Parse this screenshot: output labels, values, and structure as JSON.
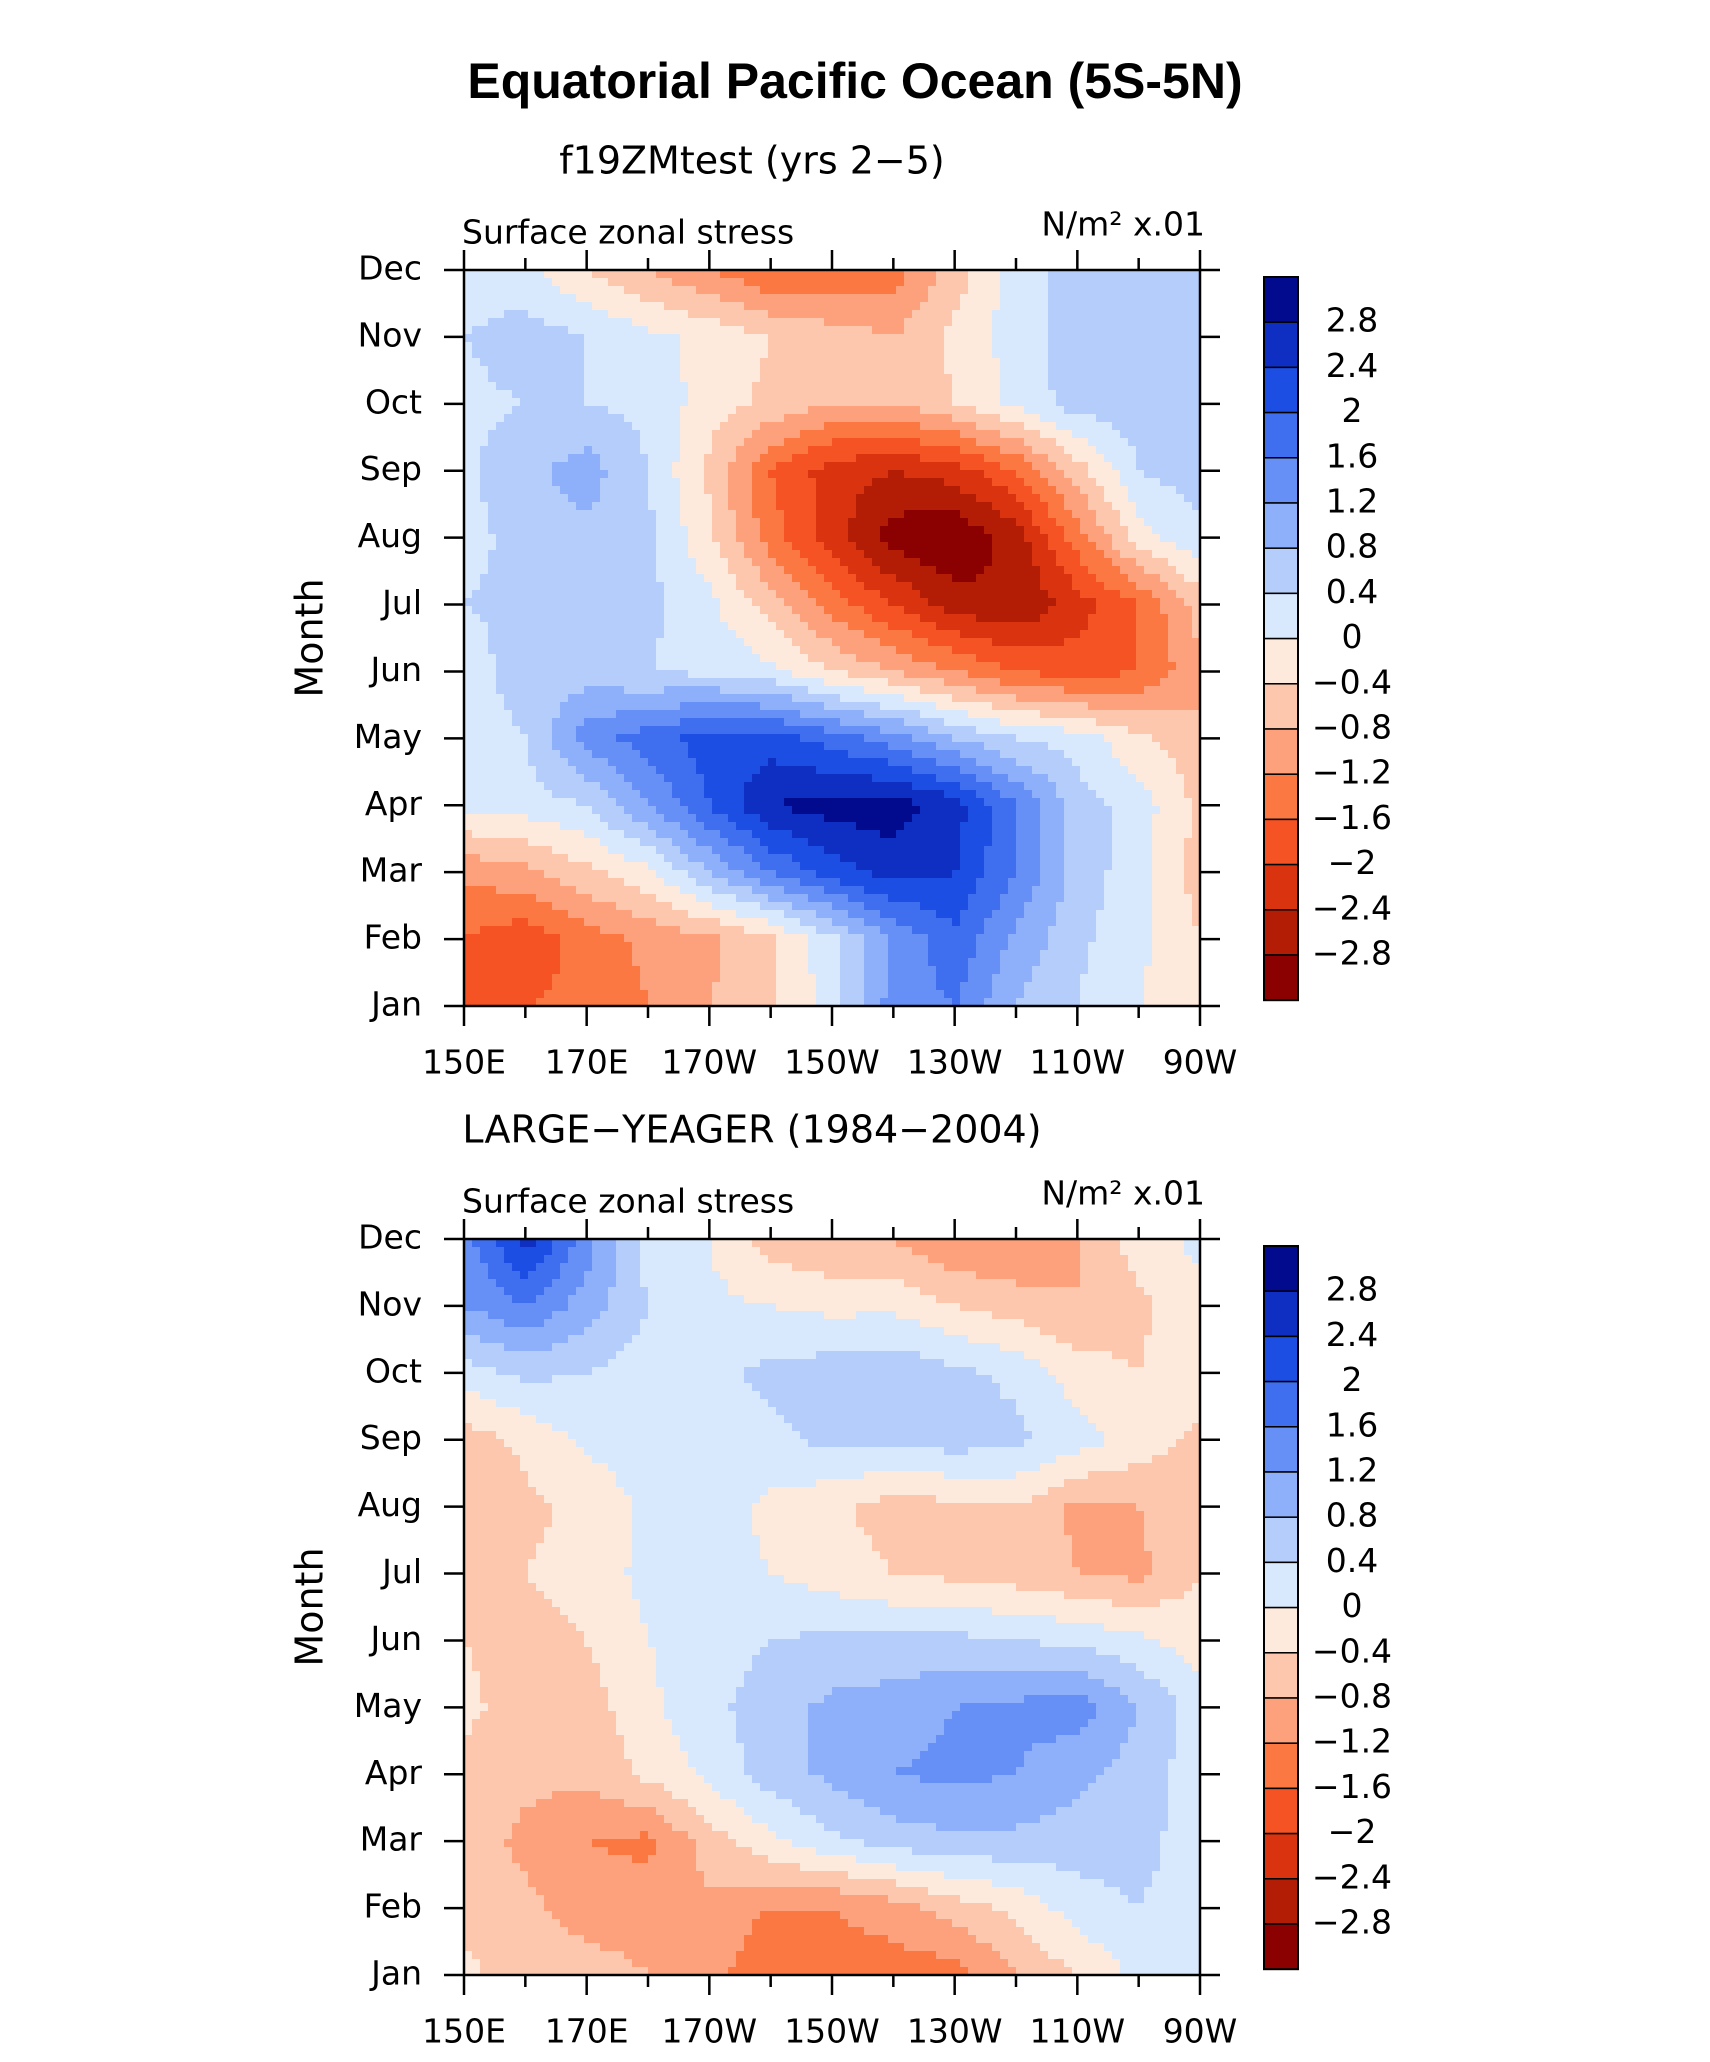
{
  "figure": {
    "title": "Equatorial Pacific Ocean (5S-5N)"
  },
  "colorbar": {
    "levels": [
      -3.2,
      -2.8,
      -2.4,
      -2.0,
      -1.6,
      -1.2,
      -0.8,
      -0.4,
      0,
      0.4,
      0.8,
      1.2,
      1.6,
      2.0,
      2.4,
      2.8,
      3.2
    ],
    "labels": [
      "2.8",
      "2.4",
      "2",
      "1.6",
      "1.2",
      "0.8",
      "0.4",
      "0",
      "−0.4",
      "−0.8",
      "−1.2",
      "−1.6",
      "−2",
      "−2.4",
      "−2.8"
    ],
    "colors": [
      "#8b0000",
      "#b31d06",
      "#d9330f",
      "#f55323",
      "#fc7842",
      "#fca17b",
      "#fdc7ad",
      "#feeadd",
      "#d9e9fd",
      "#b5cdfb",
      "#8eaffa",
      "#6690f5",
      "#3f6fef",
      "#1d4ee4",
      "#0e2fc2",
      "#020a8e"
    ]
  },
  "chart_data": [
    {
      "type": "heatmap",
      "panel_title": "f19ZMtest (yrs 2−5)",
      "left_label": "Surface zonal stress",
      "right_label": "N/m² x.01",
      "xlabel": "",
      "ylabel": "Month",
      "x_ticks": [
        "150E",
        "170E",
        "170W",
        "150W",
        "130W",
        "110W",
        "90W"
      ],
      "x_longitudes": [
        150,
        170,
        190,
        210,
        230,
        250,
        270
      ],
      "y_ticks": [
        "Jan",
        "Feb",
        "Mar",
        "Apr",
        "May",
        "Jun",
        "Jul",
        "Aug",
        "Sep",
        "Oct",
        "Nov",
        "Dec"
      ],
      "values": [
        [
          -1.6,
          -1.6,
          -1.5,
          -1.2,
          -0.8,
          -0.5,
          0.2,
          1.4,
          1.6,
          0.8,
          0.4,
          0.0,
          -0.2
        ],
        [
          -1.6,
          -1.9,
          -1.4,
          -1.1,
          -0.9,
          -0.5,
          0.3,
          1.2,
          1.9,
          1.1,
          0.5,
          0.1,
          -0.4
        ],
        [
          -1.1,
          -0.9,
          -0.5,
          -0.1,
          0.8,
          1.6,
          2.2,
          2.6,
          2.4,
          1.6,
          0.6,
          0.2,
          -0.6
        ],
        [
          0.1,
          0.2,
          0.4,
          1.2,
          2.0,
          2.8,
          3.0,
          3.0,
          2.6,
          1.6,
          0.6,
          0.2,
          -0.5
        ],
        [
          0.2,
          0.4,
          1.4,
          1.8,
          2.2,
          2.2,
          1.8,
          1.4,
          0.8,
          0.4,
          0.2,
          -0.3,
          -0.7
        ],
        [
          0.2,
          0.6,
          0.6,
          0.4,
          0.3,
          0.1,
          -0.4,
          -0.8,
          -1.2,
          -1.6,
          -1.8,
          -1.6,
          -0.9
        ],
        [
          0.4,
          0.5,
          0.6,
          0.5,
          0.1,
          -0.6,
          -1.4,
          -2.0,
          -2.6,
          -2.8,
          -2.2,
          -1.6,
          -0.6
        ],
        [
          0.3,
          0.5,
          0.7,
          0.5,
          -0.3,
          -1.4,
          -2.2,
          -3.0,
          -3.2,
          -2.6,
          -1.4,
          -0.2,
          0.3
        ],
        [
          0.3,
          0.7,
          1.0,
          0.4,
          -0.5,
          -1.6,
          -2.2,
          -2.4,
          -2.2,
          -1.6,
          -0.6,
          0.4,
          0.6
        ],
        [
          0.3,
          0.4,
          0.4,
          0.3,
          -0.2,
          -0.5,
          -0.8,
          -0.8,
          -0.4,
          0.1,
          0.6,
          0.6,
          0.4
        ],
        [
          0.4,
          0.6,
          0.4,
          0.1,
          -0.1,
          -0.4,
          -0.6,
          -0.8,
          -0.3,
          0.2,
          0.6,
          0.8,
          0.6
        ],
        [
          0.2,
          0.1,
          -0.4,
          -0.8,
          -1.2,
          -1.6,
          -1.6,
          -1.4,
          -0.6,
          0.2,
          0.6,
          0.8,
          0.4
        ]
      ]
    },
    {
      "type": "heatmap",
      "panel_title": "LARGE−YEAGER (1984−2004)",
      "left_label": "Surface zonal stress",
      "right_label": "N/m² x.01",
      "xlabel": "",
      "ylabel": "Month",
      "x_ticks": [
        "150E",
        "170E",
        "170W",
        "150W",
        "130W",
        "110W",
        "90W"
      ],
      "x_longitudes": [
        150,
        170,
        190,
        210,
        230,
        250,
        270
      ],
      "y_ticks": [
        "Jan",
        "Feb",
        "Mar",
        "Apr",
        "May",
        "Jun",
        "Jul",
        "Aug",
        "Sep",
        "Oct",
        "Nov",
        "Dec"
      ],
      "values": [
        [
          -0.3,
          -0.6,
          -0.6,
          -0.8,
          -1.0,
          -1.6,
          -1.4,
          -1.4,
          -1.4,
          -0.8,
          -0.4,
          0.1,
          0.2
        ],
        [
          -0.5,
          -0.7,
          -1.0,
          -1.0,
          -0.9,
          -1.2,
          -1.2,
          -1.0,
          -0.6,
          -0.3,
          0.2,
          0.4,
          0.1
        ],
        [
          -0.6,
          -0.9,
          -1.2,
          -1.3,
          -0.6,
          -0.1,
          0.3,
          0.6,
          0.7,
          0.7,
          0.6,
          0.6,
          0.1
        ],
        [
          -0.5,
          -0.7,
          -0.7,
          -0.3,
          0.1,
          0.6,
          0.9,
          1.2,
          1.3,
          1.2,
          0.9,
          0.6,
          0.2
        ],
        [
          -0.3,
          -0.6,
          -0.6,
          -0.1,
          0.3,
          0.6,
          0.9,
          1.0,
          1.2,
          1.3,
          1.4,
          0.8,
          0.2
        ],
        [
          -0.4,
          -0.6,
          -0.4,
          0.0,
          0.2,
          0.4,
          0.5,
          0.5,
          0.5,
          0.4,
          0.3,
          0.1,
          -0.2
        ],
        [
          -0.5,
          -0.4,
          -0.2,
          0.1,
          0.2,
          0.0,
          -0.2,
          -0.4,
          -0.5,
          -0.6,
          -0.8,
          -0.9,
          -0.4
        ],
        [
          -0.8,
          -0.5,
          -0.3,
          0.1,
          0.2,
          -0.1,
          -0.3,
          -0.6,
          -0.5,
          -0.4,
          -0.9,
          -0.8,
          -0.4
        ],
        [
          -0.6,
          -0.3,
          0.1,
          0.2,
          0.2,
          0.3,
          0.5,
          0.5,
          0.6,
          0.5,
          0.2,
          -0.2,
          -0.5
        ],
        [
          0.2,
          0.5,
          0.4,
          0.2,
          0.3,
          0.5,
          0.6,
          0.7,
          0.5,
          0.3,
          -0.2,
          -0.4,
          -0.1
        ],
        [
          1.2,
          1.6,
          1.0,
          0.4,
          0.1,
          0.0,
          -0.1,
          -0.1,
          -0.4,
          -0.6,
          -0.8,
          -0.5,
          -0.1
        ],
        [
          1.4,
          2.6,
          1.4,
          0.2,
          0.0,
          -0.6,
          -0.8,
          -0.8,
          -1.2,
          -1.2,
          -0.8,
          -0.2,
          0.1
        ]
      ]
    }
  ]
}
